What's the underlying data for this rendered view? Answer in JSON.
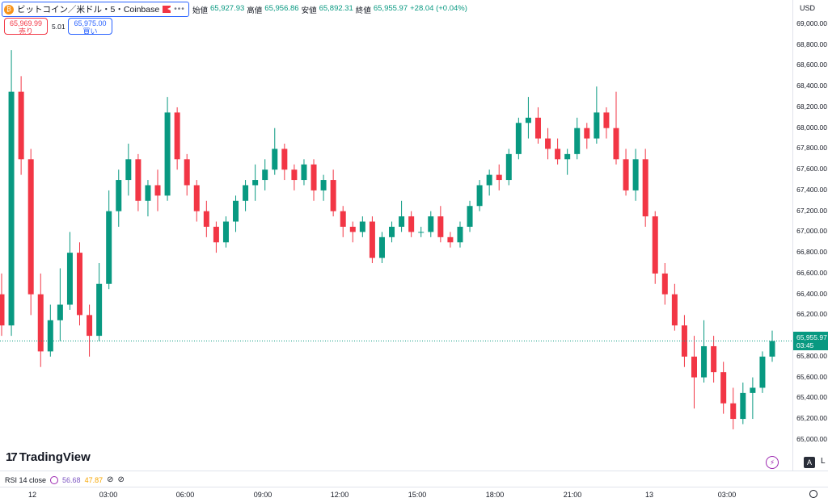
{
  "title_bar": {
    "symbol": "ビットコイン／米ドル・5・Coinbase",
    "coin_icon": "bitcoin-icon",
    "flag_icon": "flag-icon",
    "more": "•••"
  },
  "ohlc": {
    "open_label": "始値",
    "open": "65,927.93",
    "high_label": "高値",
    "high": "65,956.86",
    "low_label": "安値",
    "low": "65,892.31",
    "close_label": "終値",
    "close": "65,955.97",
    "change": "+28.04 (+0.04%)"
  },
  "trade": {
    "sell_price": "65,969.99",
    "sell_label": "売り",
    "spread": "5.01",
    "buy_price": "65,975.00",
    "buy_label": "買い"
  },
  "price_axis": {
    "currency": "USD",
    "ticks": [
      "69,000.00",
      "68,800.00",
      "68,600.00",
      "68,400.00",
      "68,200.00",
      "68,000.00",
      "67,800.00",
      "67,600.00",
      "67,400.00",
      "67,200.00",
      "67,000.00",
      "66,800.00",
      "66,600.00",
      "66,400.00",
      "66,200.00",
      "66,000.00",
      "65,800.00",
      "65,600.00",
      "65,400.00",
      "65,200.00",
      "65,000.00"
    ],
    "last_price": "65,955.97",
    "countdown": "03:45",
    "auto_label": "A",
    "log_label": "L"
  },
  "logo": {
    "text": "TradingView"
  },
  "rsi": {
    "label": "RSI 14 close",
    "value1": "56.68",
    "value2": "47.87"
  },
  "time_axis": {
    "labels": [
      "12",
      "03:00",
      "06:00",
      "09:00",
      "12:00",
      "15:00",
      "18:00",
      "21:00",
      "13",
      "03:00"
    ]
  },
  "colors": {
    "up": "#089981",
    "down": "#f23645",
    "accent": "#2962ff",
    "rsi": "#9c27b0"
  },
  "chart_data": {
    "type": "candlestick",
    "series": [
      {
        "name": "BTCUSD",
        "values": [
          [
            66400,
            66600,
            66000,
            66100
          ],
          [
            66100,
            68750,
            66000,
            68350
          ],
          [
            68350,
            68500,
            67550,
            67700
          ],
          [
            67700,
            67800,
            66200,
            66400
          ],
          [
            66400,
            66600,
            65700,
            65850
          ],
          [
            65850,
            66300,
            65800,
            66150
          ],
          [
            66150,
            66650,
            65950,
            66300
          ],
          [
            66300,
            67000,
            66250,
            66800
          ],
          [
            66800,
            66900,
            66100,
            66200
          ],
          [
            66200,
            66300,
            65800,
            66000
          ],
          [
            66000,
            66700,
            65950,
            66500
          ],
          [
            66500,
            67400,
            66450,
            67200
          ],
          [
            67200,
            67600,
            67050,
            67500
          ],
          [
            67500,
            67850,
            67350,
            67700
          ],
          [
            67700,
            67750,
            67200,
            67300
          ],
          [
            67300,
            67500,
            67150,
            67450
          ],
          [
            67450,
            67600,
            67200,
            67350
          ],
          [
            67350,
            68300,
            67300,
            68150
          ],
          [
            68150,
            68200,
            67600,
            67700
          ],
          [
            67700,
            67750,
            67350,
            67450
          ],
          [
            67450,
            67500,
            67100,
            67200
          ],
          [
            67200,
            67300,
            66950,
            67050
          ],
          [
            67050,
            67100,
            66800,
            66900
          ],
          [
            66900,
            67150,
            66850,
            67100
          ],
          [
            67100,
            67350,
            67000,
            67300
          ],
          [
            67300,
            67500,
            67200,
            67450
          ],
          [
            67450,
            67650,
            67300,
            67500
          ],
          [
            67500,
            67700,
            67400,
            67600
          ],
          [
            67600,
            68000,
            67550,
            67800
          ],
          [
            67800,
            67850,
            67500,
            67600
          ],
          [
            67600,
            67650,
            67400,
            67500
          ],
          [
            67500,
            67700,
            67450,
            67650
          ],
          [
            67650,
            67700,
            67300,
            67400
          ],
          [
            67400,
            67550,
            67300,
            67500
          ],
          [
            67500,
            67600,
            67150,
            67200
          ],
          [
            67200,
            67250,
            66950,
            67050
          ],
          [
            67050,
            67100,
            66900,
            67000
          ],
          [
            67000,
            67150,
            66950,
            67100
          ],
          [
            67100,
            67150,
            66700,
            66750
          ],
          [
            66750,
            67000,
            66700,
            66950
          ],
          [
            66950,
            67100,
            66900,
            67050
          ],
          [
            67050,
            67300,
            67000,
            67150
          ],
          [
            67150,
            67200,
            66950,
            67000
          ],
          [
            67000,
            67050,
            66950,
            67000
          ],
          [
            67000,
            67200,
            66950,
            67150
          ],
          [
            67150,
            67250,
            66900,
            66950
          ],
          [
            66950,
            67000,
            66850,
            66900
          ],
          [
            66900,
            67100,
            66850,
            67050
          ],
          [
            67050,
            67300,
            67000,
            67250
          ],
          [
            67250,
            67500,
            67200,
            67450
          ],
          [
            67450,
            67600,
            67350,
            67550
          ],
          [
            67550,
            67650,
            67400,
            67500
          ],
          [
            67500,
            67800,
            67450,
            67750
          ],
          [
            67750,
            68100,
            67700,
            68050
          ],
          [
            68050,
            68300,
            67900,
            68100
          ],
          [
            68100,
            68200,
            67850,
            67900
          ],
          [
            67900,
            68000,
            67700,
            67800
          ],
          [
            67800,
            67900,
            67650,
            67700
          ],
          [
            67700,
            67800,
            67550,
            67750
          ],
          [
            67750,
            68100,
            67700,
            68000
          ],
          [
            68000,
            68050,
            67800,
            67900
          ],
          [
            67900,
            68400,
            67850,
            68150
          ],
          [
            68150,
            68200,
            67900,
            68000
          ],
          [
            68000,
            68350,
            67650,
            67700
          ],
          [
            67700,
            67800,
            67350,
            67400
          ],
          [
            67400,
            67800,
            67300,
            67700
          ],
          [
            67700,
            67800,
            67050,
            67150
          ],
          [
            67150,
            67200,
            66500,
            66600
          ],
          [
            66600,
            66700,
            66300,
            66400
          ],
          [
            66400,
            66500,
            66050,
            66100
          ],
          [
            66100,
            66200,
            65700,
            65800
          ],
          [
            65800,
            66000,
            65300,
            65600
          ],
          [
            65600,
            66150,
            65550,
            65900
          ],
          [
            65900,
            66000,
            65550,
            65650
          ],
          [
            65650,
            65750,
            65250,
            65350
          ],
          [
            65350,
            65500,
            65100,
            65200
          ],
          [
            65200,
            65550,
            65150,
            65450
          ],
          [
            65450,
            65600,
            65200,
            65500
          ],
          [
            65500,
            65850,
            65450,
            65800
          ],
          [
            65800,
            66050,
            65750,
            65950
          ]
        ]
      }
    ],
    "ylim": [
      64950,
      69100
    ],
    "x_labels": [
      "12",
      "03:00",
      "06:00",
      "09:00",
      "12:00",
      "15:00",
      "18:00",
      "21:00",
      "13",
      "03:00"
    ]
  }
}
